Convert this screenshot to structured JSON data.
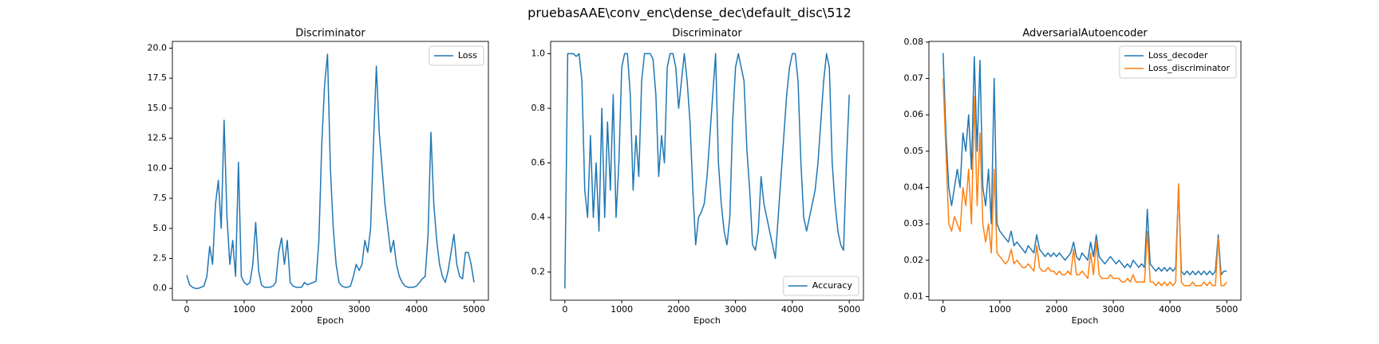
{
  "title": "pruebasAAE\\conv_enc\\dense_dec\\default_disc\\512",
  "chart_data": [
    {
      "type": "line",
      "title": "Discriminator",
      "xlabel": "Epoch",
      "x": [
        0,
        50,
        100,
        150,
        200,
        250,
        300,
        350,
        400,
        450,
        500,
        550,
        600,
        650,
        700,
        750,
        800,
        850,
        900,
        950,
        1000,
        1050,
        1100,
        1150,
        1200,
        1250,
        1300,
        1350,
        1400,
        1450,
        1500,
        1550,
        1600,
        1650,
        1700,
        1750,
        1800,
        1850,
        1900,
        1950,
        2000,
        2050,
        2100,
        2150,
        2200,
        2250,
        2300,
        2350,
        2400,
        2450,
        2500,
        2550,
        2600,
        2650,
        2700,
        2750,
        2800,
        2850,
        2900,
        2950,
        3000,
        3050,
        3100,
        3150,
        3200,
        3250,
        3300,
        3350,
        3400,
        3450,
        3500,
        3550,
        3600,
        3650,
        3700,
        3750,
        3800,
        3850,
        3900,
        3950,
        4000,
        4050,
        4100,
        4150,
        4200,
        4250,
        4300,
        4350,
        4400,
        4450,
        4500,
        4550,
        4600,
        4650,
        4700,
        4750,
        4800,
        4850,
        4900,
        4950,
        5000
      ],
      "series": [
        {
          "name": "Loss",
          "color": "#1f77b4",
          "values": [
            1.1,
            0.3,
            0.1,
            0.0,
            0.0,
            0.1,
            0.2,
            1.0,
            3.5,
            2,
            7,
            9,
            5,
            14,
            6,
            2,
            4,
            1,
            10.5,
            1,
            0.5,
            0.3,
            0.5,
            2,
            5.5,
            1.5,
            0.3,
            0.1,
            0.1,
            0.1,
            0.2,
            0.5,
            3,
            4.2,
            2,
            4,
            0.5,
            0.2,
            0.1,
            0.1,
            0.1,
            0.5,
            0.3,
            0.4,
            0.5,
            0.6,
            4,
            12,
            17,
            19.5,
            10,
            5,
            2,
            0.5,
            0.2,
            0.1,
            0.1,
            0.2,
            1,
            2,
            1.5,
            2,
            4,
            3,
            5,
            12,
            18.5,
            13,
            10,
            7,
            5,
            3,
            4,
            2,
            1,
            0.5,
            0.2,
            0.1,
            0.1,
            0.1,
            0.2,
            0.5,
            0.8,
            1,
            4.5,
            13,
            7,
            4,
            2,
            1,
            0.5,
            1.5,
            3,
            4.5,
            2,
            1,
            0.8,
            3,
            3,
            2,
            0.5
          ]
        }
      ],
      "xlim": [
        -250,
        5250
      ],
      "xticks": [
        0,
        1000,
        2000,
        3000,
        4000,
        5000
      ],
      "ylim": [
        -0.98,
        20.56
      ],
      "yticks": [
        {
          "value": 0,
          "label": "0.0"
        },
        2.5,
        {
          "value": 5,
          "label": "5.0"
        },
        7.5,
        {
          "value": 10,
          "label": "10.0"
        },
        12.5,
        {
          "value": 15,
          "label": "15.0"
        },
        17.5,
        {
          "value": 20,
          "label": "20.0"
        }
      ],
      "grid": false,
      "legend": "upper right"
    },
    {
      "type": "line",
      "title": "Discriminator",
      "xlabel": "Epoch",
      "x": [
        0,
        50,
        100,
        150,
        200,
        250,
        300,
        350,
        400,
        450,
        500,
        550,
        600,
        650,
        700,
        750,
        800,
        850,
        900,
        950,
        1000,
        1050,
        1100,
        1150,
        1200,
        1250,
        1300,
        1350,
        1400,
        1450,
        1500,
        1550,
        1600,
        1650,
        1700,
        1750,
        1800,
        1850,
        1900,
        1950,
        2000,
        2050,
        2100,
        2150,
        2200,
        2250,
        2300,
        2350,
        2400,
        2450,
        2500,
        2550,
        2600,
        2650,
        2700,
        2750,
        2800,
        2850,
        2900,
        2950,
        3000,
        3050,
        3100,
        3150,
        3200,
        3250,
        3300,
        3350,
        3400,
        3450,
        3500,
        3550,
        3600,
        3650,
        3700,
        3750,
        3800,
        3850,
        3900,
        3950,
        4000,
        4050,
        4100,
        4150,
        4200,
        4250,
        4300,
        4350,
        4400,
        4450,
        4500,
        4550,
        4600,
        4650,
        4700,
        4750,
        4800,
        4850,
        4900,
        4950,
        5000
      ],
      "series": [
        {
          "name": "Accuracy",
          "color": "#1f77b4",
          "values": [
            0.14,
            1.0,
            1.0,
            1.0,
            0.99,
            1.0,
            0.9,
            0.5,
            0.4,
            0.7,
            0.4,
            0.6,
            0.35,
            0.8,
            0.4,
            0.75,
            0.5,
            0.85,
            0.4,
            0.6,
            0.95,
            1.0,
            1.0,
            0.85,
            0.5,
            0.7,
            0.55,
            0.9,
            1.0,
            1.0,
            1.0,
            0.98,
            0.85,
            0.55,
            0.7,
            0.6,
            0.95,
            1.0,
            1.0,
            0.95,
            0.8,
            0.9,
            1.0,
            0.9,
            0.75,
            0.5,
            0.3,
            0.4,
            0.42,
            0.45,
            0.55,
            0.7,
            0.85,
            1.0,
            0.6,
            0.45,
            0.35,
            0.3,
            0.4,
            0.75,
            0.95,
            1.0,
            0.95,
            0.9,
            0.65,
            0.5,
            0.3,
            0.28,
            0.35,
            0.55,
            0.45,
            0.4,
            0.35,
            0.3,
            0.25,
            0.4,
            0.55,
            0.7,
            0.85,
            0.95,
            1.0,
            1.0,
            0.9,
            0.6,
            0.4,
            0.35,
            0.4,
            0.45,
            0.5,
            0.6,
            0.75,
            0.9,
            1.0,
            0.95,
            0.6,
            0.45,
            0.35,
            0.3,
            0.28,
            0.6,
            0.85
          ]
        }
      ],
      "xlim": [
        -250,
        5250
      ],
      "xticks": [
        0,
        1000,
        2000,
        3000,
        4000,
        5000
      ],
      "ylim": [
        0.097,
        1.045
      ],
      "yticks": [
        0.2,
        0.4,
        0.6,
        0.8,
        {
          "value": 1,
          "label": "1.0"
        }
      ],
      "grid": false,
      "legend": "lower right"
    },
    {
      "type": "line",
      "title": "AdversarialAutoencoder",
      "xlabel": "Epoch",
      "x": [
        0,
        50,
        100,
        150,
        200,
        250,
        300,
        350,
        400,
        450,
        500,
        550,
        600,
        650,
        700,
        750,
        800,
        850,
        900,
        950,
        1000,
        1050,
        1100,
        1150,
        1200,
        1250,
        1300,
        1350,
        1400,
        1450,
        1500,
        1550,
        1600,
        1650,
        1700,
        1750,
        1800,
        1850,
        1900,
        1950,
        2000,
        2050,
        2100,
        2150,
        2200,
        2250,
        2300,
        2350,
        2400,
        2450,
        2500,
        2550,
        2600,
        2650,
        2700,
        2750,
        2800,
        2850,
        2900,
        2950,
        3000,
        3050,
        3100,
        3150,
        3200,
        3250,
        3300,
        3350,
        3400,
        3450,
        3500,
        3550,
        3600,
        3650,
        3700,
        3750,
        3800,
        3850,
        3900,
        3950,
        4000,
        4050,
        4100,
        4150,
        4200,
        4250,
        4300,
        4350,
        4400,
        4450,
        4500,
        4550,
        4600,
        4650,
        4700,
        4750,
        4800,
        4850,
        4900,
        4950,
        5000
      ],
      "series": [
        {
          "name": "Loss_decoder",
          "color": "#1f77b4",
          "values": [
            0.077,
            0.055,
            0.04,
            0.035,
            0.04,
            0.045,
            0.04,
            0.055,
            0.05,
            0.06,
            0.045,
            0.076,
            0.05,
            0.075,
            0.04,
            0.035,
            0.045,
            0.03,
            0.07,
            0.03,
            0.028,
            0.027,
            0.026,
            0.025,
            0.028,
            0.024,
            0.025,
            0.024,
            0.023,
            0.022,
            0.024,
            0.023,
            0.022,
            0.027,
            0.023,
            0.022,
            0.021,
            0.022,
            0.021,
            0.022,
            0.021,
            0.022,
            0.021,
            0.02,
            0.021,
            0.022,
            0.025,
            0.021,
            0.02,
            0.022,
            0.021,
            0.02,
            0.025,
            0.021,
            0.027,
            0.021,
            0.02,
            0.019,
            0.02,
            0.021,
            0.02,
            0.019,
            0.02,
            0.019,
            0.018,
            0.019,
            0.018,
            0.02,
            0.019,
            0.018,
            0.019,
            0.018,
            0.034,
            0.019,
            0.018,
            0.017,
            0.018,
            0.017,
            0.018,
            0.017,
            0.018,
            0.017,
            0.018,
            0.04,
            0.017,
            0.016,
            0.017,
            0.016,
            0.017,
            0.016,
            0.017,
            0.016,
            0.017,
            0.016,
            0.017,
            0.016,
            0.017,
            0.027,
            0.016,
            0.017,
            0.017
          ]
        },
        {
          "name": "Loss_discriminator",
          "color": "#ff7f0e",
          "values": [
            0.07,
            0.05,
            0.03,
            0.028,
            0.032,
            0.03,
            0.028,
            0.04,
            0.035,
            0.045,
            0.03,
            0.065,
            0.035,
            0.055,
            0.03,
            0.025,
            0.03,
            0.022,
            0.045,
            0.022,
            0.021,
            0.02,
            0.019,
            0.02,
            0.023,
            0.019,
            0.02,
            0.019,
            0.018,
            0.018,
            0.019,
            0.018,
            0.017,
            0.024,
            0.018,
            0.017,
            0.017,
            0.018,
            0.017,
            0.017,
            0.016,
            0.017,
            0.016,
            0.016,
            0.017,
            0.016,
            0.023,
            0.016,
            0.016,
            0.017,
            0.016,
            0.015,
            0.022,
            0.016,
            0.025,
            0.016,
            0.015,
            0.015,
            0.015,
            0.016,
            0.015,
            0.015,
            0.015,
            0.014,
            0.014,
            0.015,
            0.014,
            0.016,
            0.014,
            0.014,
            0.014,
            0.014,
            0.028,
            0.014,
            0.014,
            0.013,
            0.014,
            0.013,
            0.014,
            0.013,
            0.014,
            0.013,
            0.014,
            0.041,
            0.014,
            0.013,
            0.013,
            0.013,
            0.014,
            0.013,
            0.013,
            0.013,
            0.014,
            0.013,
            0.014,
            0.013,
            0.013,
            0.026,
            0.013,
            0.013,
            0.014
          ]
        }
      ],
      "xlim": [
        -250,
        5250
      ],
      "xticks": [
        0,
        1000,
        2000,
        3000,
        4000,
        5000
      ],
      "ylim": [
        0.009,
        0.0802
      ],
      "yticks": [
        0.01,
        0.02,
        0.03,
        0.04,
        0.05,
        0.06,
        0.07,
        0.08
      ],
      "grid": false,
      "legend": "upper right"
    }
  ]
}
